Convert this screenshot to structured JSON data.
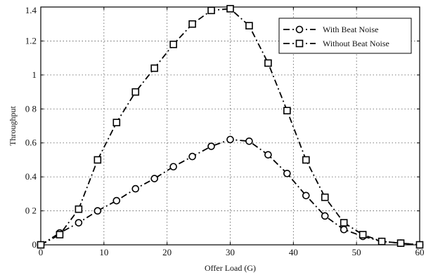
{
  "chart_data": {
    "type": "line",
    "xlabel": "Offer Load (G)",
    "ylabel": "Throughput",
    "xlim": [
      0,
      60
    ],
    "ylim": [
      0,
      1.4
    ],
    "xticks": [
      0,
      10,
      20,
      30,
      40,
      50,
      60
    ],
    "yticks": [
      0,
      0.2,
      0.4,
      0.6,
      0.8,
      1,
      1.2,
      1.4
    ],
    "xtick_labels": [
      "0",
      "10",
      "20",
      "30",
      "40",
      "50",
      "60"
    ],
    "ytick_labels": [
      "0",
      "0 2",
      "0.4",
      "0.6",
      "0 8",
      "1",
      "1.2",
      "1.4"
    ],
    "grid": true,
    "legend_position": "top-right",
    "series": [
      {
        "name": "With Beat Noise",
        "marker": "circle",
        "color": "#000000",
        "x": [
          0,
          3,
          6,
          9,
          12,
          15,
          18,
          21,
          24,
          27,
          30,
          33,
          36,
          39,
          42,
          45,
          48,
          51,
          54,
          57,
          60
        ],
        "y": [
          0,
          0.07,
          0.13,
          0.2,
          0.26,
          0.33,
          0.39,
          0.46,
          0.52,
          0.58,
          0.62,
          0.61,
          0.53,
          0.42,
          0.29,
          0.17,
          0.09,
          0.05,
          0.02,
          0.01,
          0
        ]
      },
      {
        "name": "Without Beat Noise",
        "marker": "square",
        "color": "#000000",
        "x": [
          0,
          3,
          6,
          9,
          12,
          15,
          18,
          21,
          24,
          27,
          30,
          33,
          36,
          39,
          42,
          45,
          48,
          51,
          54,
          57,
          60
        ],
        "y": [
          0,
          0.06,
          0.21,
          0.5,
          0.72,
          0.9,
          1.04,
          1.18,
          1.3,
          1.38,
          1.39,
          1.29,
          1.07,
          0.79,
          0.5,
          0.28,
          0.13,
          0.06,
          0.02,
          0.01,
          0
        ]
      }
    ]
  }
}
